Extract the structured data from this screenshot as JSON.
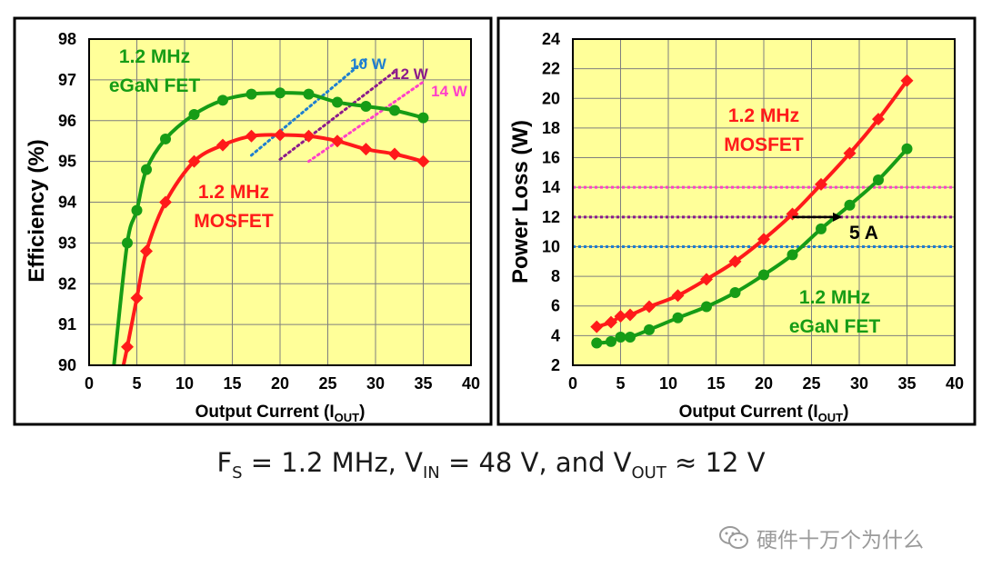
{
  "colors": {
    "plot_bg": "#ffff99",
    "gan": "#169c16",
    "mosfet": "#ff1a1a",
    "line_10w": "#1f7fd0",
    "line_12w": "#8b1a8b",
    "line_14w": "#ff40c8",
    "frame": "#000000",
    "grid": "#7f7f7f"
  },
  "caption": {
    "fs": "F",
    "fs_sub": "S",
    "fs_value": " = 1.2 MHz, V",
    "vin_sub": "IN",
    "vin_value": " = 48 V, and V",
    "vout_sub": "OUT",
    "vout_value": " ≈ 12 V"
  },
  "watermark": {
    "icon": "wechat-icon",
    "text": "硬件十万个为什么"
  },
  "chart_data": [
    {
      "type": "line",
      "title": "",
      "xlabel": "Output Current (I",
      "xlabel_sub": "OUT",
      "xlabel_tail": ")",
      "ylabel": "Efficiency (%)",
      "xlim": [
        0,
        40
      ],
      "ylim": [
        90,
        98
      ],
      "xticks": [
        0,
        5,
        10,
        15,
        20,
        25,
        30,
        35,
        40
      ],
      "yticks": [
        90,
        91,
        92,
        93,
        94,
        95,
        96,
        97,
        98
      ],
      "grid": true,
      "series": [
        {
          "name": "1.2 MHz eGaN FET",
          "color": "gan",
          "marker": "circle",
          "x": [
            4,
            5,
            6,
            8,
            11,
            14,
            17,
            20,
            23,
            26,
            29,
            32,
            35
          ],
          "y": [
            93.0,
            93.8,
            94.8,
            95.55,
            96.15,
            96.5,
            96.65,
            96.68,
            96.65,
            96.45,
            96.35,
            96.25,
            96.07
          ],
          "curve_start": [
            2.6,
            90.0
          ]
        },
        {
          "name": "1.2 MHz MOSFET",
          "color": "mosfet",
          "marker": "diamond",
          "x": [
            4,
            5,
            6,
            8,
            11,
            14,
            17,
            20,
            23,
            26,
            29,
            32,
            35
          ],
          "y": [
            90.45,
            91.65,
            92.8,
            94.0,
            95.0,
            95.4,
            95.62,
            95.65,
            95.62,
            95.5,
            95.3,
            95.18,
            95.0
          ],
          "curve_start": [
            3.6,
            90.0
          ]
        }
      ],
      "loss_contours": [
        {
          "label": "10 W",
          "color": "line_10w",
          "x": [
            17,
            29
          ],
          "y": [
            95.15,
            97.5
          ]
        },
        {
          "label": "12 W",
          "color": "line_12w",
          "x": [
            20,
            32
          ],
          "y": [
            95.05,
            97.2
          ]
        },
        {
          "label": "14 W",
          "color": "line_14w",
          "x": [
            23,
            35
          ],
          "y": [
            95.0,
            96.95
          ]
        }
      ],
      "annotations": [
        {
          "text": "1.2 MHz",
          "color": "gan"
        },
        {
          "text": "eGaN FET",
          "color": "gan"
        },
        {
          "text": "1.2 MHz",
          "color": "mosfet"
        },
        {
          "text": "MOSFET",
          "color": "mosfet"
        }
      ]
    },
    {
      "type": "line",
      "title": "",
      "xlabel": "Output Current (I",
      "xlabel_sub": "OUT",
      "xlabel_tail": ")",
      "ylabel": "Power Loss (W)",
      "xlim": [
        0,
        40
      ],
      "ylim": [
        2,
        24
      ],
      "xticks": [
        0,
        5,
        10,
        15,
        20,
        25,
        30,
        35,
        40
      ],
      "yticks": [
        2,
        4,
        6,
        8,
        10,
        12,
        14,
        16,
        18,
        20,
        22,
        24
      ],
      "grid": true,
      "series": [
        {
          "name": "1.2 MHz MOSFET",
          "color": "mosfet",
          "marker": "diamond",
          "x": [
            2.5,
            4,
            5,
            6,
            8,
            11,
            14,
            17,
            20,
            23,
            26,
            29,
            32,
            35
          ],
          "y": [
            4.6,
            4.9,
            5.3,
            5.4,
            5.95,
            6.7,
            7.8,
            9.0,
            10.5,
            12.2,
            14.2,
            16.3,
            18.6,
            21.2
          ]
        },
        {
          "name": "1.2 MHz eGaN FET",
          "color": "gan",
          "marker": "circle",
          "x": [
            2.5,
            4,
            5,
            6,
            8,
            11,
            14,
            17,
            20,
            23,
            26,
            29,
            32,
            35
          ],
          "y": [
            3.5,
            3.6,
            3.9,
            3.9,
            4.4,
            5.2,
            5.95,
            6.9,
            8.1,
            9.45,
            11.2,
            12.8,
            14.5,
            16.6
          ]
        }
      ],
      "reference_lines": [
        {
          "y": 14,
          "color": "line_14w"
        },
        {
          "y": 12,
          "color": "line_12w"
        },
        {
          "y": 10,
          "color": "line_10w"
        }
      ],
      "arrow": {
        "x_from": 23,
        "x_to": 28,
        "y": 12,
        "label": "5 A"
      },
      "annotations": [
        {
          "text": "1.2 MHz",
          "color": "mosfet"
        },
        {
          "text": "MOSFET",
          "color": "mosfet"
        },
        {
          "text": "1.2 MHz",
          "color": "gan"
        },
        {
          "text": "eGaN FET",
          "color": "gan"
        }
      ]
    }
  ]
}
